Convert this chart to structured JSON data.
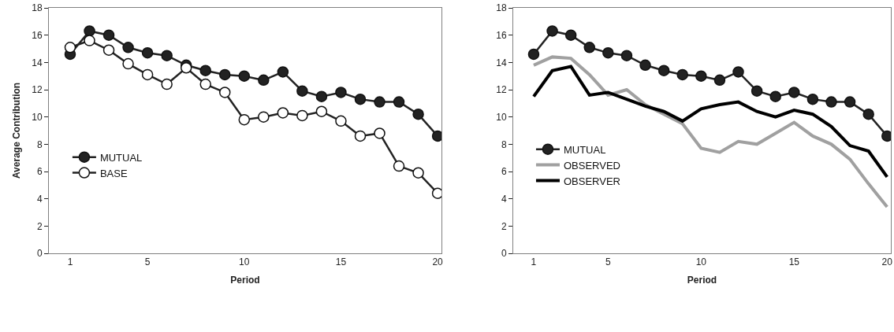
{
  "chart_data": [
    {
      "type": "line",
      "xlabel": "Period",
      "ylabel": "Average Contribution",
      "x": [
        1,
        2,
        3,
        4,
        5,
        6,
        7,
        8,
        9,
        10,
        11,
        12,
        13,
        14,
        15,
        16,
        17,
        18,
        19,
        20
      ],
      "xlim": [
        -0.1,
        20.2
      ],
      "xticks": [
        1,
        5,
        10,
        15,
        20
      ],
      "ylim": [
        0,
        18
      ],
      "yticks": [
        0,
        2,
        4,
        6,
        8,
        10,
        12,
        14,
        16,
        18
      ],
      "grid": false,
      "legend": "left",
      "series": [
        {
          "name": "MUTUAL",
          "color": "#222222",
          "marker": "circle",
          "values": [
            14.6,
            16.3,
            16.0,
            15.1,
            14.7,
            14.5,
            13.8,
            13.4,
            13.1,
            13.0,
            12.7,
            13.3,
            11.9,
            11.5,
            11.8,
            11.3,
            11.1,
            11.1,
            10.2,
            8.6
          ]
        },
        {
          "name": "BASE",
          "color": "#ffffff",
          "marker": "circle",
          "values": [
            15.1,
            15.6,
            14.9,
            13.9,
            13.1,
            12.4,
            13.6,
            12.4,
            11.8,
            9.8,
            10.0,
            10.3,
            10.1,
            10.4,
            9.7,
            8.6,
            8.8,
            6.4,
            5.9,
            4.4
          ]
        }
      ]
    },
    {
      "type": "line",
      "xlabel": "Period",
      "x": [
        1,
        2,
        3,
        4,
        5,
        6,
        7,
        8,
        9,
        10,
        11,
        12,
        13,
        14,
        15,
        16,
        17,
        18,
        19,
        20
      ],
      "xlim": [
        -0.1,
        20.2
      ],
      "xticks": [
        1,
        5,
        10,
        15,
        20
      ],
      "ylim": [
        0,
        18
      ],
      "yticks": [
        0,
        2,
        4,
        6,
        8,
        10,
        12,
        14,
        16,
        18
      ],
      "grid": false,
      "legend": "left",
      "series": [
        {
          "name": "MUTUAL",
          "color": "#222222",
          "marker": "circle",
          "values": [
            14.6,
            16.3,
            16.0,
            15.1,
            14.7,
            14.5,
            13.8,
            13.4,
            13.1,
            13.0,
            12.7,
            13.3,
            11.9,
            11.5,
            11.8,
            11.3,
            11.1,
            11.1,
            10.2,
            8.6
          ]
        },
        {
          "name": "OBSERVED",
          "color": "#a0a0a0",
          "marker": "none",
          "values": [
            13.8,
            14.4,
            14.3,
            13.1,
            11.6,
            12.0,
            10.9,
            10.2,
            9.5,
            7.7,
            7.4,
            8.2,
            8.0,
            8.8,
            9.6,
            8.6,
            8.0,
            6.9,
            5.1,
            3.4
          ]
        },
        {
          "name": "OBSERVER",
          "color": "#000000",
          "marker": "none",
          "values": [
            11.5,
            13.4,
            13.7,
            11.6,
            11.8,
            11.3,
            10.8,
            10.4,
            9.7,
            10.6,
            10.9,
            11.1,
            10.4,
            10.0,
            10.5,
            10.2,
            9.3,
            7.9,
            7.5,
            5.6
          ]
        }
      ]
    }
  ]
}
